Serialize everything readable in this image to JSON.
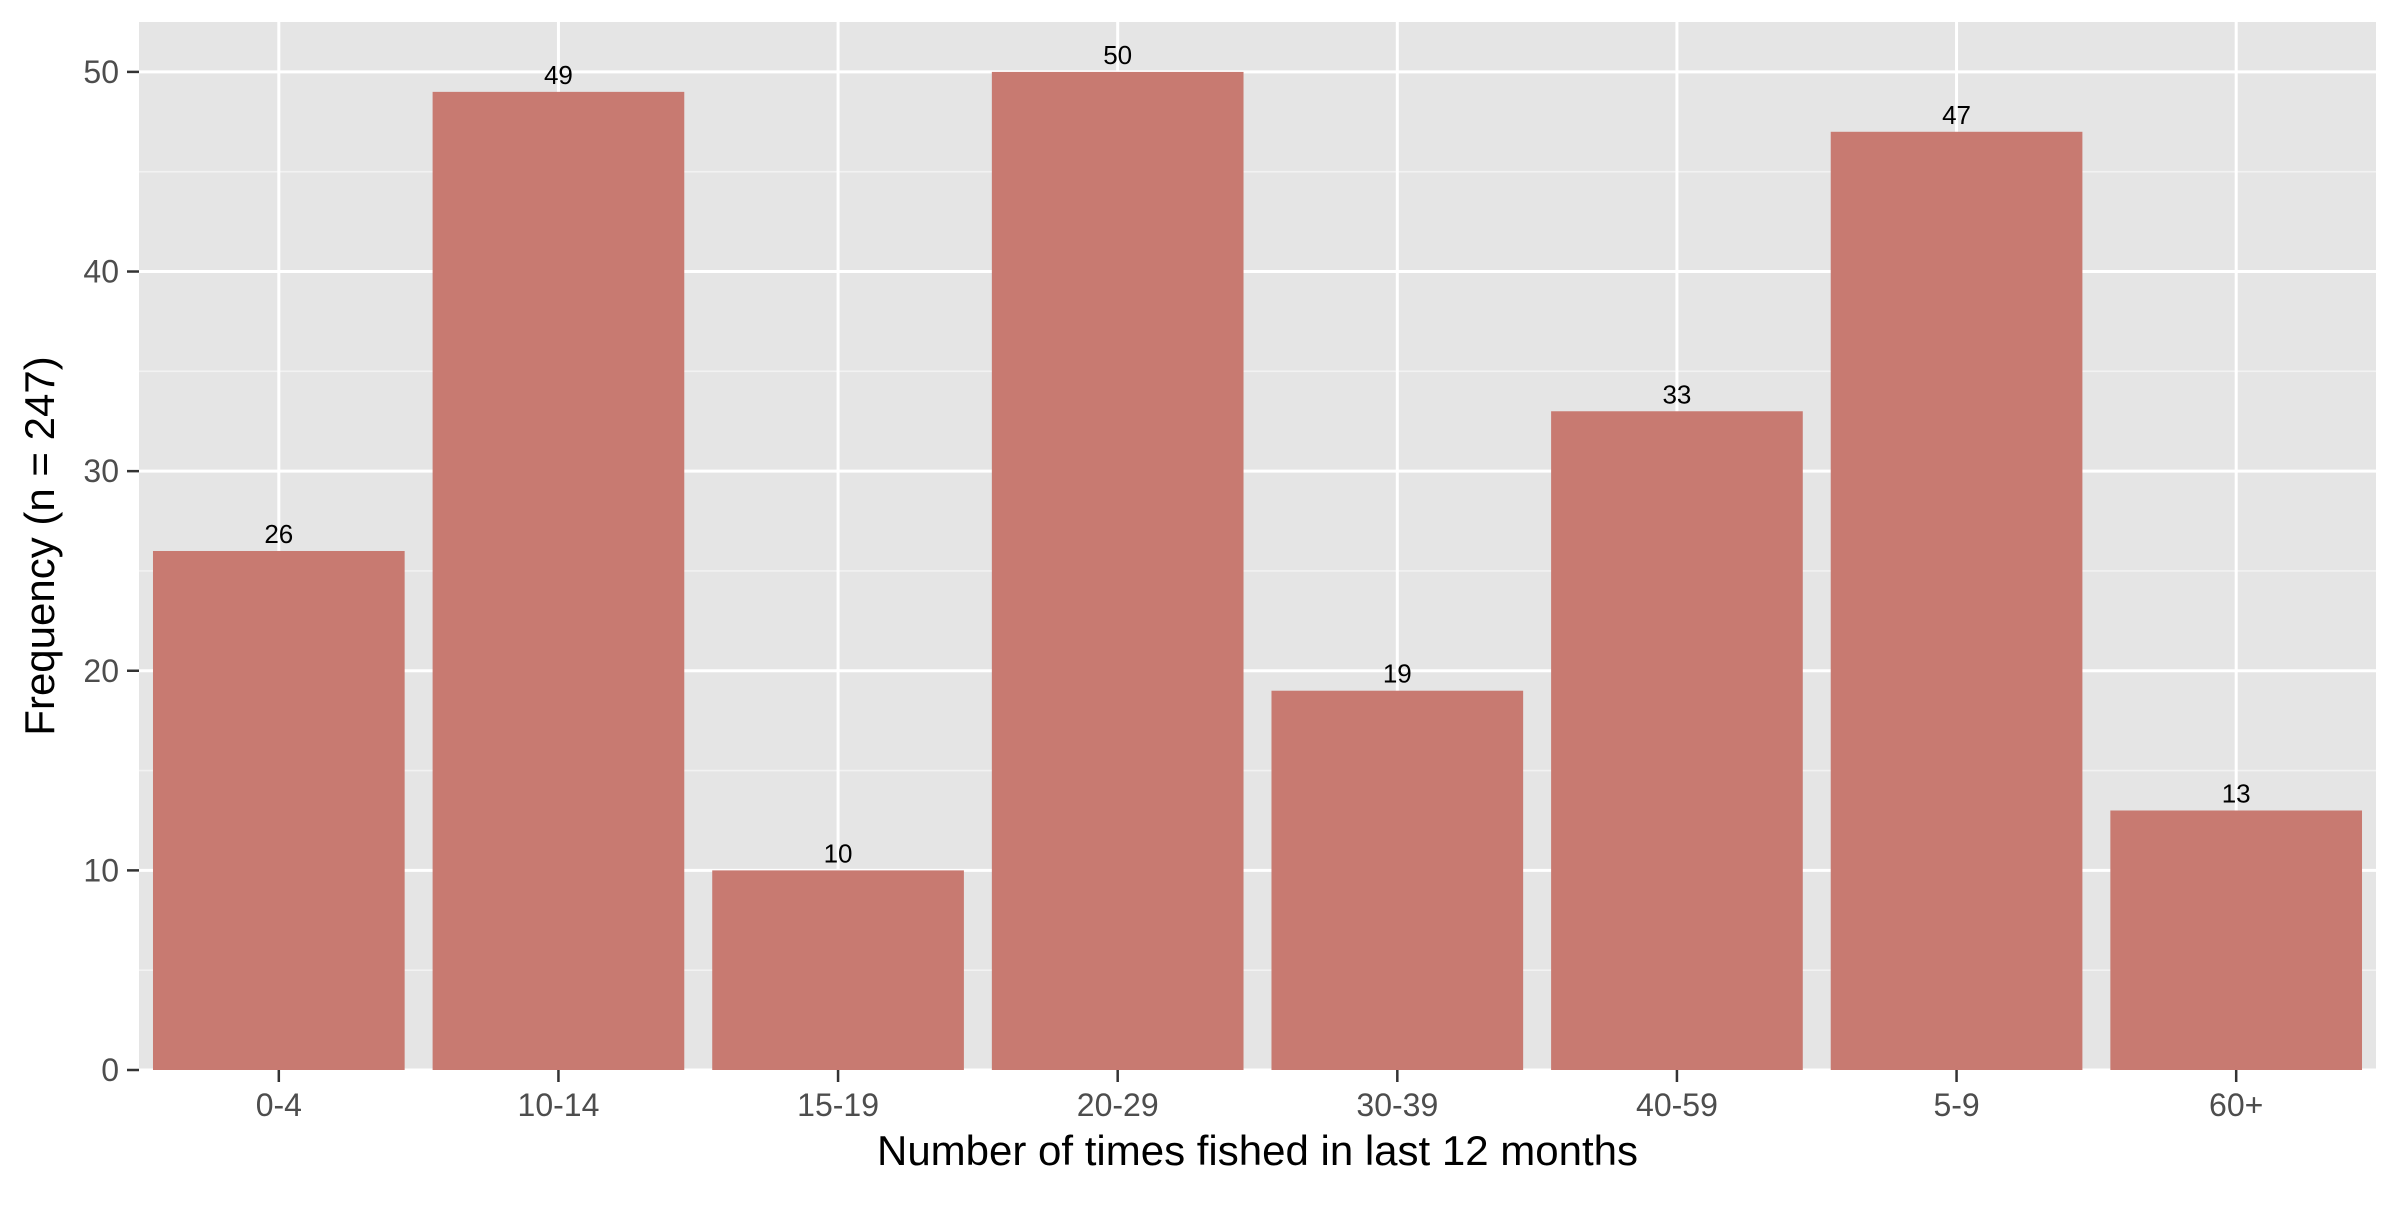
{
  "chart_data": {
    "type": "bar",
    "title": "",
    "xlabel": "Number of times fished in last 12 months",
    "ylabel": "Frequency (n = 247)",
    "categories": [
      "0-4",
      "10-14",
      "15-19",
      "20-29",
      "30-39",
      "40-59",
      "5-9",
      "60+"
    ],
    "values": [
      26,
      49,
      10,
      50,
      19,
      33,
      47,
      13
    ],
    "data_labels": [
      "26",
      "49",
      "10",
      "50",
      "19",
      "33",
      "47",
      "13"
    ],
    "ylim": [
      0,
      52.5
    ],
    "yticks": [
      0,
      10,
      20,
      30,
      40,
      50
    ],
    "ytick_labels": [
      "0",
      "10",
      "20",
      "30",
      "40",
      "50"
    ],
    "grid": true,
    "legend": "none",
    "colors": {
      "bar": "#C87A71",
      "panel_background": "#E5E5E5",
      "grid_major": "#FFFFFF",
      "grid_minor": "#F2F2F2",
      "tick_text": "#4D4D4D",
      "axis_title": "#000000",
      "tick_mark": "#333333"
    }
  }
}
